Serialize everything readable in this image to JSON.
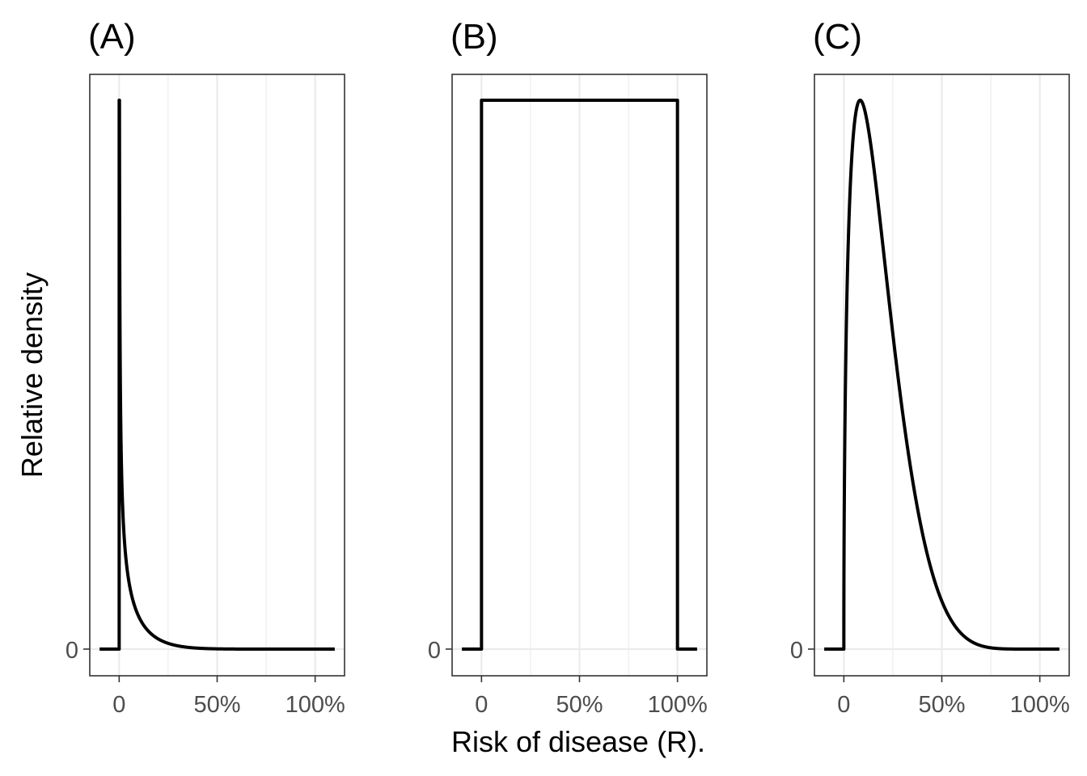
{
  "chart_data": {
    "type": "line",
    "xlabel": "Risk of disease (R).",
    "ylabel": "Relative density",
    "xlim": [
      -0.15,
      1.15
    ],
    "x_ticks": [
      0,
      0.5,
      1.0
    ],
    "x_tick_labels": [
      "0",
      "50%",
      "100%"
    ],
    "y_ticks": [
      0
    ],
    "y_tick_labels": [
      "0"
    ],
    "panels": [
      {
        "title": "(A)",
        "distribution": "beta",
        "alpha": 0.5,
        "beta": 8,
        "domain": [
          -0.1,
          1.1
        ],
        "description": "very steep spike at 0 decaying quickly toward zero by ~50%"
      },
      {
        "title": "(B)",
        "distribution": "uniform",
        "alpha": 1,
        "beta": 1,
        "domain": [
          -0.1,
          1.1
        ],
        "description": "constant density between 0 and 100%, zero outside"
      },
      {
        "title": "(C)",
        "distribution": "beta",
        "alpha": 1.5,
        "beta": 6.5,
        "domain": [
          -0.1,
          1.1
        ],
        "description": "right-skewed hump peaking near 7% and reaching ~0 by 80%"
      }
    ]
  }
}
